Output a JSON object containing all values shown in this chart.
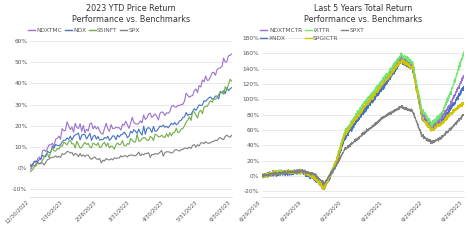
{
  "left_title": "2023 YTD Price Return\nPerformance vs. Benchmarks",
  "right_title": "Last 5 Years Total Return\nPerformance vs. Benchmarks",
  "left_legend": [
    "NDXTMC",
    "NDX",
    "S5INFT",
    "SPX"
  ],
  "left_colors": [
    "#9B72CF",
    "#4472C4",
    "#70AD47",
    "#808080"
  ],
  "right_legend": [
    "NDXTMCTR",
    "XNDX",
    "IXTTR",
    "SPGICTR",
    "SPXT"
  ],
  "right_colors": [
    "#9B72CF",
    "#4472C4",
    "#70E870",
    "#D4C400",
    "#808080"
  ],
  "left_yticks": [
    -0.1,
    0.0,
    0.1,
    0.2,
    0.3,
    0.4,
    0.5,
    0.6
  ],
  "left_ylabels": [
    "-10%",
    "0%",
    "10%",
    "20%",
    "30%",
    "40%",
    "50%",
    "60%"
  ],
  "left_ylim": [
    -0.14,
    0.67
  ],
  "right_yticks": [
    -0.2,
    0.0,
    0.2,
    0.4,
    0.6,
    0.8,
    1.0,
    1.2,
    1.4,
    1.6,
    1.8
  ],
  "right_ylabels": [
    "-20%",
    "0%",
    "20%",
    "40%",
    "60%",
    "80%",
    "100%",
    "120%",
    "140%",
    "160%",
    "180%"
  ],
  "right_ylim": [
    -0.28,
    1.95
  ],
  "background_color": "#FFFFFF",
  "grid_color": "#D8D8D8",
  "left_xtick_labels": [
    "12/30/2022",
    "1/30/2023",
    "2/28/2023",
    "3/31/2023",
    "4/30/2023",
    "5/31/2023",
    "6/30/2023"
  ],
  "right_xtick_labels": [
    "6/29/2018",
    "6/29/2019",
    "6/29/2020",
    "6/29/2021",
    "6/29/2022",
    "6/29/2023"
  ],
  "title_fontsize": 5.8,
  "tick_fontsize": 4.2,
  "legend_fontsize": 4.2,
  "linewidth": 0.8
}
